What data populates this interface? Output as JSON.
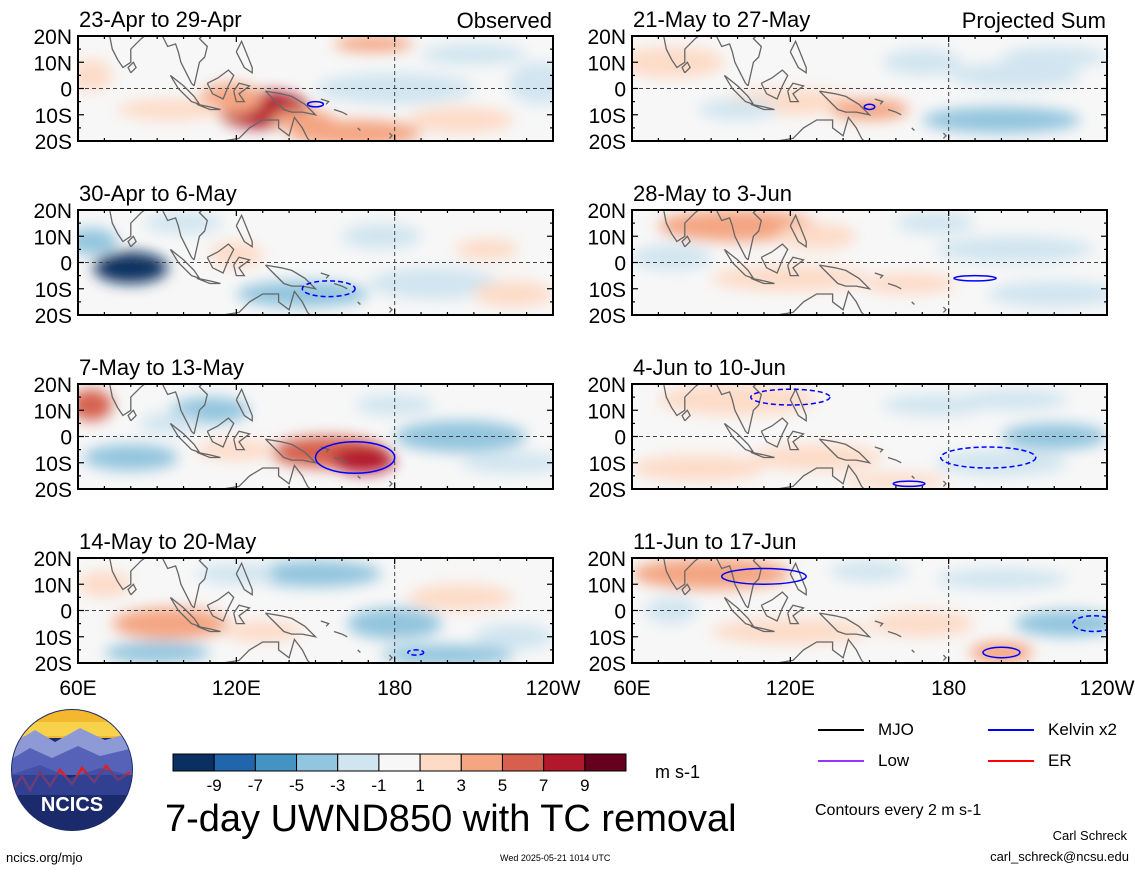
{
  "chart_data": {
    "type": "heatmap",
    "title": "7-day UWND850 with TC removal",
    "column_headers": [
      "Observed",
      "Projected Sum"
    ],
    "units": "m s-1",
    "xlabel": "",
    "ylabel": "",
    "x_tick_labels": [
      "60E",
      "120E",
      "180",
      "120W"
    ],
    "x_tick_values_deg_east": [
      60,
      120,
      180,
      240
    ],
    "xlim_deg_east": [
      60,
      240
    ],
    "y_tick_labels": [
      "20N",
      "10N",
      "0",
      "10S",
      "20S"
    ],
    "y_tick_values": [
      20,
      10,
      0,
      -10,
      -20
    ],
    "ylim": [
      -20,
      20
    ],
    "colorbar": {
      "tick_labels": [
        "-9",
        "-7",
        "-5",
        "-3",
        "-1",
        "1",
        "3",
        "5",
        "7",
        "9"
      ],
      "colors": [
        "#0a3062",
        "#2166ac",
        "#4393c3",
        "#92c5de",
        "#d1e5f0",
        "#f7f7f7",
        "#fddbc7",
        "#f4a582",
        "#d6604d",
        "#b2182b",
        "#67001f"
      ]
    },
    "contour_note": "Contours every 2 m s-1",
    "legend": [
      {
        "label": "MJO",
        "color": "#000000"
      },
      {
        "label": "Kelvin x2",
        "color": "#0000ff"
      },
      {
        "label": "Low",
        "color": "#9933ff"
      },
      {
        "label": "ER",
        "color": "#ff0000"
      }
    ],
    "panels": [
      {
        "label": "23-Apr to 29-Apr",
        "column": "observed",
        "blobs": [
          [
            130,
            -8,
            18,
            7,
            9
          ],
          [
            118,
            -4,
            12,
            6,
            5
          ],
          [
            165,
            -17,
            25,
            5,
            5
          ],
          [
            172,
            17,
            15,
            3,
            4
          ],
          [
            65,
            5,
            8,
            6,
            3
          ],
          [
            205,
            -12,
            20,
            5,
            3
          ],
          [
            95,
            -8,
            20,
            4,
            2
          ],
          [
            145,
            -12,
            12,
            4,
            5
          ],
          [
            210,
            13,
            20,
            4,
            -2
          ],
          [
            235,
            2,
            12,
            8,
            -2
          ],
          [
            180,
            0,
            30,
            6,
            -1
          ]
        ],
        "contours": [
          {
            "type": "kelvin",
            "lon": 150,
            "lat": -6,
            "rx": 3,
            "ry": 1,
            "dashed": false
          }
        ]
      },
      {
        "label": "30-Apr to 6-May",
        "column": "observed",
        "blobs": [
          [
            80,
            -2,
            14,
            6,
            -9
          ],
          [
            65,
            8,
            10,
            5,
            -3
          ],
          [
            145,
            -12,
            25,
            5,
            -3
          ],
          [
            195,
            -8,
            25,
            6,
            -2
          ],
          [
            175,
            10,
            15,
            5,
            -2
          ],
          [
            120,
            3,
            10,
            5,
            2
          ],
          [
            215,
            5,
            12,
            4,
            2
          ],
          [
            100,
            15,
            15,
            4,
            -1
          ],
          [
            225,
            -12,
            15,
            5,
            2
          ]
        ],
        "contours": [
          {
            "type": "kelvin",
            "lon": 155,
            "lat": -10,
            "rx": 10,
            "ry": 3,
            "dashed": true
          }
        ]
      },
      {
        "label": "7-May to 13-May",
        "column": "observed",
        "blobs": [
          [
            155,
            -6,
            22,
            6,
            6
          ],
          [
            168,
            -9,
            12,
            5,
            9
          ],
          [
            65,
            12,
            8,
            6,
            6
          ],
          [
            80,
            -8,
            18,
            5,
            -4
          ],
          [
            110,
            10,
            15,
            5,
            -3
          ],
          [
            205,
            0,
            25,
            6,
            -4
          ],
          [
            225,
            -10,
            20,
            4,
            -2
          ],
          [
            180,
            12,
            15,
            4,
            -2
          ],
          [
            120,
            -5,
            15,
            4,
            3
          ],
          [
            95,
            5,
            12,
            4,
            -2
          ]
        ],
        "contours": [
          {
            "type": "kelvin",
            "lon": 165,
            "lat": -8,
            "rx": 15,
            "ry": 6,
            "dashed": false
          }
        ]
      },
      {
        "label": "14-May to 20-May",
        "column": "observed",
        "blobs": [
          [
            95,
            -5,
            22,
            6,
            5
          ],
          [
            150,
            14,
            25,
            5,
            -4
          ],
          [
            180,
            -5,
            18,
            6,
            -4
          ],
          [
            90,
            -16,
            20,
            4,
            -4
          ],
          [
            120,
            14,
            15,
            4,
            -2
          ],
          [
            205,
            5,
            20,
            5,
            2
          ],
          [
            225,
            -10,
            15,
            5,
            -2
          ],
          [
            200,
            -17,
            25,
            4,
            -3
          ],
          [
            130,
            -8,
            15,
            4,
            2
          ],
          [
            70,
            10,
            10,
            5,
            2
          ]
        ],
        "contours": [
          {
            "type": "kelvin",
            "lon": 188,
            "lat": -16,
            "rx": 3,
            "ry": 1,
            "dashed": true
          }
        ]
      },
      {
        "label": "21-May to 27-May",
        "column": "projected",
        "blobs": [
          [
            75,
            10,
            20,
            6,
            3
          ],
          [
            120,
            -5,
            25,
            5,
            3
          ],
          [
            150,
            -8,
            15,
            4,
            4
          ],
          [
            200,
            -12,
            30,
            5,
            -3
          ],
          [
            205,
            5,
            25,
            5,
            -2
          ],
          [
            220,
            12,
            20,
            4,
            -2
          ],
          [
            100,
            -8,
            15,
            4,
            -2
          ],
          [
            170,
            10,
            15,
            5,
            -1
          ]
        ],
        "contours": [
          {
            "type": "kelvin",
            "lon": 150,
            "lat": -7,
            "rx": 2,
            "ry": 1,
            "dashed": false
          }
        ]
      },
      {
        "label": "28-May to 3-Jun",
        "column": "projected",
        "blobs": [
          [
            100,
            14,
            30,
            6,
            4
          ],
          [
            120,
            -6,
            30,
            5,
            3
          ],
          [
            165,
            -8,
            18,
            4,
            2
          ],
          [
            205,
            5,
            30,
            5,
            -2
          ],
          [
            220,
            -12,
            25,
            5,
            -2
          ],
          [
            130,
            10,
            15,
            5,
            2
          ],
          [
            75,
            2,
            15,
            5,
            -1
          ],
          [
            175,
            15,
            15,
            4,
            -2
          ]
        ],
        "contours": [
          {
            "type": "kelvin",
            "lon": 190,
            "lat": -6,
            "rx": 8,
            "ry": 1,
            "dashed": false
          }
        ]
      },
      {
        "label": "4-Jun to 10-Jun",
        "column": "projected",
        "blobs": [
          [
            100,
            14,
            30,
            6,
            3
          ],
          [
            85,
            -12,
            25,
            5,
            3
          ],
          [
            130,
            -8,
            25,
            5,
            3
          ],
          [
            220,
            0,
            20,
            5,
            -3
          ],
          [
            200,
            -10,
            25,
            5,
            -2
          ],
          [
            175,
            12,
            20,
            4,
            -1
          ],
          [
            160,
            -17,
            20,
            3,
            2
          ],
          [
            205,
            14,
            20,
            4,
            -2
          ]
        ],
        "contours": [
          {
            "type": "kelvin",
            "lon": 195,
            "lat": -8,
            "rx": 18,
            "ry": 4,
            "dashed": true
          },
          {
            "type": "kelvin",
            "lon": 120,
            "lat": 15,
            "rx": 15,
            "ry": 3,
            "dashed": true
          },
          {
            "type": "kelvin",
            "lon": 165,
            "lat": -18,
            "rx": 6,
            "ry": 1,
            "dashed": false
          }
        ]
      },
      {
        "label": "11-Jun to 17-Jun",
        "column": "projected",
        "blobs": [
          [
            90,
            14,
            30,
            6,
            5
          ],
          [
            120,
            -8,
            30,
            5,
            3
          ],
          [
            170,
            -5,
            20,
            5,
            2
          ],
          [
            225,
            -5,
            20,
            5,
            -4
          ],
          [
            200,
            -16,
            12,
            4,
            4
          ],
          [
            200,
            12,
            25,
            4,
            -2
          ],
          [
            150,
            15,
            15,
            4,
            -2
          ],
          [
            75,
            0,
            10,
            5,
            -1
          ]
        ],
        "contours": [
          {
            "type": "kelvin",
            "lon": 110,
            "lat": 13,
            "rx": 16,
            "ry": 3,
            "dashed": false
          },
          {
            "type": "kelvin",
            "lon": 235,
            "lat": -5,
            "rx": 8,
            "ry": 3,
            "dashed": true
          },
          {
            "type": "kelvin",
            "lon": 200,
            "lat": -16,
            "rx": 7,
            "ry": 2,
            "dashed": false
          }
        ]
      }
    ]
  },
  "logo_text": "NCICS",
  "footer": {
    "site": "ncics.org/mjo",
    "timestamp": "Wed 2025-05-21 1014 UTC",
    "author": "Carl Schreck",
    "email": "carl_schreck@ncsu.edu"
  }
}
